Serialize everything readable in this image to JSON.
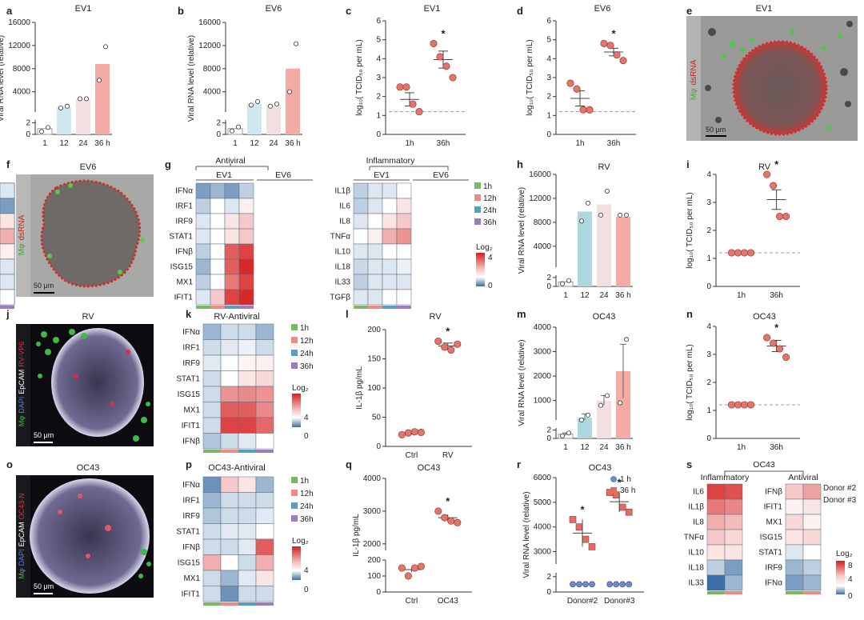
{
  "panels": {
    "a": {
      "letter": "a",
      "title": "EV1"
    },
    "b": {
      "letter": "b",
      "title": "EV6"
    },
    "c": {
      "letter": "c",
      "title": "EV1"
    },
    "d": {
      "letter": "d",
      "title": "EV6"
    },
    "e": {
      "letter": "e",
      "title": "EV1",
      "stain_a": "Mφ",
      "stain_b": "dsRNA",
      "scale": "50 μm"
    },
    "f": {
      "letter": "f",
      "title": "EV6",
      "stain_a": "Mφ",
      "stain_b": "dsRNA",
      "scale": "50 μm"
    },
    "g": {
      "letter": "g",
      "antiviral": "Antiviral",
      "inflammatory": "Inflammatory",
      "ev1": "EV1",
      "ev6": "EV6",
      "legend_title": "Log₂",
      "lmax": "4",
      "lmin": "0"
    },
    "h": {
      "letter": "h",
      "title": "RV"
    },
    "i": {
      "letter": "i",
      "title": "RV"
    },
    "j": {
      "letter": "j",
      "title": "RV",
      "stains": [
        "Mφ",
        "DAPI",
        "EpCAM",
        "RV-VP6"
      ],
      "scale": "50 μm"
    },
    "k": {
      "letter": "k",
      "title": "RV-Antiviral",
      "legend_title": "Log₂",
      "lmax": "4",
      "lmin": "0"
    },
    "l": {
      "letter": "l",
      "title": "RV"
    },
    "m": {
      "letter": "m",
      "title": "OC43"
    },
    "n": {
      "letter": "n",
      "title": "OC43"
    },
    "o": {
      "letter": "o",
      "title": "OC43",
      "stains": [
        "Mφ",
        "DAPI",
        "EpCAM",
        "OC43-N"
      ],
      "scale": "50 μm"
    },
    "p": {
      "letter": "p",
      "title": "OC43-Antiviral",
      "legend_title": "Log₂",
      "lmax": "4",
      "lmin": "0"
    },
    "q": {
      "letter": "q",
      "title": "OC43"
    },
    "r": {
      "letter": "r",
      "title": "OC43"
    },
    "s": {
      "letter": "s",
      "title": "OC43",
      "inflammatory": "Inflammatory",
      "antiviral": "Antiviral",
      "legend_title": "Log₂",
      "lmax": "8",
      "lmid": "4",
      "lmin": "0"
    }
  },
  "time_legend": [
    "1h",
    "12h",
    "24h",
    "36h"
  ],
  "time_colors": [
    "#7ab865",
    "#ee8a7f",
    "#5b9bc6",
    "#9b7dbd"
  ],
  "donor_legend": [
    "Donor #2",
    "Donor #3"
  ],
  "donor_colors": [
    "#7ab865",
    "#ee8a7f"
  ],
  "chart_data": [
    {
      "id": "a",
      "type": "bar",
      "title": "EV1",
      "ylabel": "Viral RNA level (relative)",
      "categories": [
        "1",
        "12",
        "24",
        "36 h"
      ],
      "values": [
        1,
        1400,
        2800,
        8800
      ],
      "points": [
        [
          0.5,
          1.2
        ],
        [
          1200,
          1500
        ],
        [
          2800,
          2800
        ],
        [
          6000,
          11800
        ]
      ],
      "yticks_top": [
        "16000",
        "12000",
        "8000",
        "4000"
      ],
      "yticks_bottom": [
        "2",
        "0"
      ],
      "colors": [
        "#ffffff",
        "#cfe8ee",
        "#f1dfe2",
        "#f4aaa5"
      ]
    },
    {
      "id": "b",
      "type": "bar",
      "title": "EV6",
      "ylabel": "Viral RNA level (relative)",
      "categories": [
        "1",
        "12",
        "24",
        "36 h"
      ],
      "values": [
        1,
        2000,
        1700,
        8000
      ],
      "points": [
        [
          0.6,
          1.3
        ],
        [
          1700,
          2300
        ],
        [
          1500,
          1900
        ],
        [
          4000,
          12300
        ]
      ],
      "yticks_top": [
        "16000",
        "12000",
        "8000",
        "4000"
      ],
      "yticks_bottom": [
        "2",
        "0"
      ],
      "colors": [
        "#ffffff",
        "#cfe8ee",
        "#f1dfe2",
        "#f4aaa5"
      ]
    },
    {
      "id": "c",
      "type": "scatter",
      "title": "EV1",
      "ylabel": "log₁₀( TCID₅₀ per mL)",
      "categories": [
        "1h",
        "36h"
      ],
      "ylim": [
        0,
        6
      ],
      "yticks": [
        "0",
        "1",
        "2",
        "3",
        "4",
        "5",
        "6"
      ],
      "groups": [
        [
          2.5,
          2.5,
          1.6,
          1.2
        ],
        [
          4.8,
          4.1,
          3.6,
          3.0
        ]
      ],
      "mean": [
        1.85,
        3.95
      ],
      "sem": [
        0.35,
        0.45
      ],
      "detection_limit": 1.2,
      "sig": [
        "",
        "*"
      ]
    },
    {
      "id": "d",
      "type": "scatter",
      "title": "EV6",
      "ylabel": "log₁₀( TCID₅₀ per mL)",
      "categories": [
        "1h",
        "36h"
      ],
      "ylim": [
        0,
        6
      ],
      "yticks": [
        "0",
        "1",
        "2",
        "3",
        "4",
        "5",
        "6"
      ],
      "groups": [
        [
          2.7,
          2.4,
          1.3,
          1.3
        ],
        [
          4.8,
          4.7,
          4.2,
          3.9
        ]
      ],
      "mean": [
        1.9,
        4.35
      ],
      "sem": [
        0.4,
        0.2
      ],
      "detection_limit": 1.2,
      "sig": [
        "",
        "*"
      ]
    },
    {
      "id": "g",
      "type": "heatmap",
      "rows_left": [
        "IFNα",
        "IRF1",
        "IRF9",
        "STAT1",
        "IFNβ",
        "ISG15",
        "MX1",
        "IFIT1"
      ],
      "rows_right": [
        "IL1β",
        "IL6",
        "IL8",
        "TNFα",
        "IL10",
        "IL18",
        "IL33",
        "TGFβ"
      ],
      "columns": [
        "EV1 1h",
        "EV1 12h",
        "EV1 24h",
        "EV1 36h",
        "EV6 1h",
        "EV6 12h",
        "EV6 24h",
        "EV6 36h"
      ],
      "antiviral": [
        [
          -2,
          -1.5,
          -2,
          -1,
          -3,
          -2,
          -2,
          -1
        ],
        [
          -1,
          0,
          -0.5,
          0.3,
          -1,
          0,
          -0.5,
          0
        ],
        [
          -0.5,
          0,
          0.5,
          1,
          -0.5,
          0,
          1,
          1.5
        ],
        [
          -0.5,
          0,
          0.5,
          1,
          -0.5,
          0,
          0.5,
          1
        ],
        [
          -1,
          0,
          3,
          3.5,
          -1,
          1,
          3,
          3.5
        ],
        [
          -1.5,
          0,
          3,
          4,
          -2,
          1,
          3.5,
          4
        ],
        [
          -1,
          0,
          2.5,
          3.5,
          -1,
          1,
          3,
          3.5
        ],
        [
          -0.5,
          1,
          3.5,
          4,
          -0.5,
          2,
          3.5,
          4
        ]
      ],
      "inflammatory": [
        [
          -1,
          -0.5,
          -0.5,
          0,
          -1,
          -0.5,
          -0.5,
          -0.5
        ],
        [
          -1,
          -0.5,
          0,
          0.5,
          -0.5,
          1.5,
          0,
          -2
        ],
        [
          -0.5,
          0,
          0.5,
          1,
          -0.5,
          0,
          0.5,
          0.5
        ],
        [
          0,
          0.3,
          1.5,
          2,
          0,
          0.5,
          0.5,
          1.5
        ],
        [
          -0.5,
          -0.5,
          0,
          0,
          -0.3,
          0,
          0,
          0.3
        ],
        [
          -0.8,
          -0.5,
          -0.5,
          -0.3,
          -0.8,
          -0.5,
          -0.5,
          -0.5
        ],
        [
          -1,
          -0.5,
          -0.5,
          -0.5,
          -1,
          -0.5,
          -0.5,
          -0.5
        ],
        [
          -0.5,
          -0.5,
          0,
          0,
          -0.5,
          -0.3,
          0,
          0
        ]
      ],
      "scale": [
        -3,
        4
      ]
    },
    {
      "id": "h",
      "type": "bar",
      "title": "RV",
      "ylabel": "Viral RNA level (relative)",
      "categories": [
        "1",
        "12",
        "24",
        "36 h"
      ],
      "values": [
        1,
        9800,
        11000,
        8900
      ],
      "points": [
        [
          0.6,
          1.3
        ],
        [
          8200,
          11200
        ],
        [
          9200,
          13200
        ],
        [
          9200,
          9200
        ]
      ],
      "yticks_top": [
        "16000",
        "12000",
        "8000",
        "4000"
      ],
      "yticks_bottom": [
        "2",
        "0"
      ],
      "colors": [
        "#ffffff",
        "#aed8e0",
        "#f1dfe2",
        "#f4aaa5"
      ]
    },
    {
      "id": "i",
      "type": "scatter",
      "title": "RV",
      "ylabel": "log₁₀( TCID₅₀ per mL)",
      "categories": [
        "1h",
        "36h"
      ],
      "ylim": [
        0,
        4
      ],
      "yticks": [
        "0",
        "1",
        "2",
        "3",
        "4"
      ],
      "groups": [
        [
          1.2,
          1.2,
          1.2,
          1.2
        ],
        [
          4.0,
          3.6,
          2.5,
          2.5
        ]
      ],
      "mean": [
        1.2,
        3.1
      ],
      "sem": [
        0,
        0.35
      ],
      "detection_limit": 1.2,
      "sig": [
        "",
        "*"
      ]
    },
    {
      "id": "k",
      "type": "heatmap",
      "rows": [
        "IFNα",
        "IRF1",
        "IRF9",
        "STAT1",
        "ISG15",
        "MX1",
        "IFIT1",
        "IFNβ"
      ],
      "columns": [
        "1h",
        "12h",
        "24h",
        "36h"
      ],
      "values": [
        [
          -1,
          -0.5,
          -0.5,
          -1
        ],
        [
          -0.5,
          -0.3,
          -0.2,
          -0.5
        ],
        [
          -0.3,
          0,
          0.2,
          0.3
        ],
        [
          -0.5,
          0,
          0.5,
          0.7
        ],
        [
          -0.5,
          2,
          2.2,
          2
        ],
        [
          -0.5,
          3,
          3,
          2.2
        ],
        [
          -0.5,
          3.5,
          3.5,
          2.8
        ],
        [
          -0.8,
          -0.5,
          -0.3,
          0
        ]
      ],
      "scale": [
        -2,
        4
      ]
    },
    {
      "id": "l",
      "type": "scatter",
      "title": "RV",
      "ylabel": "IL-1β pg/mL",
      "categories": [
        "Ctrl",
        "RV"
      ],
      "ylim": [
        0,
        200
      ],
      "yticks": [
        "0",
        "50",
        "100",
        "150",
        "200"
      ],
      "groups": [
        [
          20,
          23,
          25,
          24
        ],
        [
          180,
          170,
          165,
          175
        ]
      ],
      "mean": [
        22.5,
        172
      ],
      "sem": [
        1.5,
        5
      ],
      "sig": [
        "",
        "*"
      ]
    },
    {
      "id": "m",
      "type": "bar",
      "title": "OC43",
      "ylabel": "Viral RNA level (relative)",
      "categories": [
        "1",
        "12",
        "24",
        "36 h"
      ],
      "values": [
        1,
        300,
        1000,
        2200
      ],
      "errors": [
        0.3,
        150,
        200,
        1100
      ],
      "points": [
        [
          0.6,
          1.3
        ],
        [
          200,
          400
        ],
        [
          800,
          1200
        ],
        [
          900,
          3500
        ]
      ],
      "yticks_top": [
        "4000",
        "3000",
        "2000",
        "1000"
      ],
      "yticks_bottom": [
        "2",
        "0"
      ],
      "colors": [
        "#ffffff",
        "#aed8e0",
        "#f1dfe2",
        "#f4aaa5"
      ]
    },
    {
      "id": "n",
      "type": "scatter",
      "title": "OC43",
      "ylabel": "log₁₀( TCID₅₀ per mL)",
      "categories": [
        "1h",
        "36h"
      ],
      "ylim": [
        0,
        4
      ],
      "yticks": [
        "0",
        "1",
        "2",
        "3",
        "4"
      ],
      "groups": [
        [
          1.2,
          1.2,
          1.2,
          1.2
        ],
        [
          3.6,
          3.4,
          3.2,
          2.9
        ]
      ],
      "mean": [
        1.2,
        3.3
      ],
      "sem": [
        0,
        0.2
      ],
      "detection_limit": 1.2,
      "sig": [
        "",
        "*"
      ]
    },
    {
      "id": "p",
      "type": "heatmap",
      "rows": [
        "IFNα",
        "IRF1",
        "IRF9",
        "STAT1",
        "IFNβ",
        "ISG15",
        "MX1",
        "IFIT1"
      ],
      "columns": [
        "1h",
        "12h",
        "24h",
        "36h"
      ],
      "values": [
        [
          -1.5,
          1,
          0.5,
          -1
        ],
        [
          -1,
          -0.5,
          -0.5,
          -0.5
        ],
        [
          -0.8,
          -0.5,
          -0.5,
          -0.3
        ],
        [
          -0.5,
          -0.3,
          -0.3,
          0
        ],
        [
          -0.5,
          -0.5,
          -0.3,
          3
        ],
        [
          1.5,
          0,
          -0.5,
          1.5
        ],
        [
          -0.5,
          -1,
          -0.3,
          0.5
        ],
        [
          -0.5,
          -1.5,
          -0.5,
          -0.5
        ]
      ],
      "scale": [
        -2,
        4
      ]
    },
    {
      "id": "q",
      "type": "scatter",
      "title": "OC43",
      "ylabel": "IL-1β pg/mL",
      "categories": [
        "Ctrl",
        "OC43"
      ],
      "yticks_top": [
        "4000",
        "3000",
        "2000"
      ],
      "yticks_bottom": [
        "200",
        "100",
        "0"
      ],
      "groups": [
        [
          150,
          100,
          150,
          160
        ],
        [
          3000,
          2800,
          2700,
          2650
        ]
      ],
      "mean": [
        140,
        2800
      ],
      "sem": [
        15,
        100
      ],
      "sig": [
        "",
        "*"
      ]
    },
    {
      "id": "r",
      "type": "scatter",
      "title": "OC43",
      "ylabel": "Viral RNA level (relative)",
      "categories": [
        "Donor#2",
        "Donor#3"
      ],
      "yticks_top": [
        "6000",
        "5000",
        "4000",
        "3000"
      ],
      "yticks_bottom": [
        "2",
        "0"
      ],
      "series": [
        {
          "name": "1 h",
          "shape": "circle",
          "color": "#6f89c7",
          "values": [
            [
              1,
              1,
              1,
              1
            ],
            [
              1,
              1,
              1,
              1
            ]
          ]
        },
        {
          "name": "36 h",
          "shape": "square",
          "color": "#e46b62",
          "values": [
            [
              4300,
              4000,
              3500,
              3200
            ],
            [
              5400,
              5300,
              4800,
              4600
            ]
          ]
        }
      ],
      "sig": [
        "*",
        "*"
      ]
    },
    {
      "id": "s",
      "type": "heatmap",
      "rows_left": [
        "IL6",
        "IL1β",
        "IL8",
        "TNFα",
        "IL10",
        "IL18",
        "IL33"
      ],
      "rows_right": [
        "IFNβ",
        "IFIT1",
        "MX1",
        "ISG15",
        "STAT1",
        "IRF9",
        "IFNα"
      ],
      "columns": [
        "Donor #2",
        "Donor #3"
      ],
      "inflammatory": [
        [
          7,
          6.5
        ],
        [
          5,
          4.5
        ],
        [
          3,
          2.5
        ],
        [
          2,
          1.5
        ],
        [
          1,
          1
        ],
        [
          -1,
          -2
        ],
        [
          -3,
          -1.5
        ]
      ],
      "antiviral": [
        [
          2,
          3.5
        ],
        [
          0.5,
          1
        ],
        [
          1.5,
          0.5
        ],
        [
          1,
          1.5
        ],
        [
          -0.5,
          0
        ],
        [
          -1.5,
          -1
        ],
        [
          -2,
          -1.5
        ]
      ],
      "scale": [
        -3,
        8
      ]
    }
  ]
}
